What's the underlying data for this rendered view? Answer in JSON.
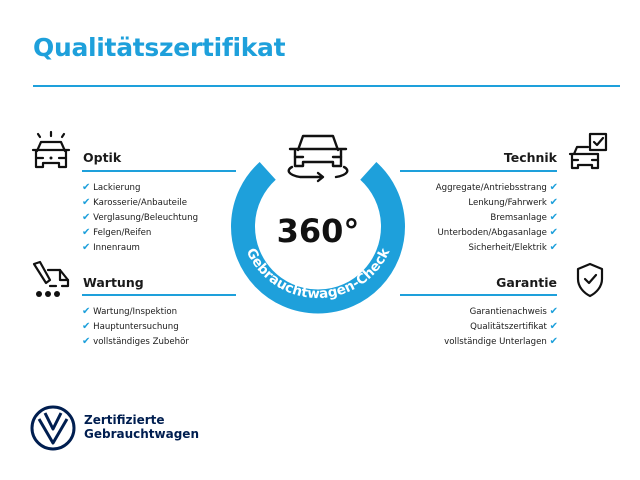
{
  "title": "Qualitätszertifikat",
  "accent_color": "#1ea0db",
  "badge": {
    "main": "360°",
    "ring_text": "Gebrauchtwagen-Check",
    "icon": "car-rotate-icon"
  },
  "sections": {
    "optik": {
      "heading": "Optik",
      "icon": "car-headlights-icon",
      "items": [
        "Lackierung",
        "Karosserie/Anbauteile",
        "Verglasung/Beleuchtung",
        "Felgen/Reifen",
        "Innenraum"
      ]
    },
    "wartung": {
      "heading": "Wartung",
      "icon": "service-car-icon",
      "items": [
        "Wartung/Inspektion",
        "Hauptuntersuchung",
        "vollständiges Zubehör"
      ]
    },
    "technik": {
      "heading": "Technik",
      "icon": "car-checklist-icon",
      "items": [
        "Aggregate/Antriebsstrang",
        "Lenkung/Fahrwerk",
        "Bremsanlage",
        "Unterboden/Abgasanlage",
        "Sicherheit/Elektrik"
      ]
    },
    "garantie": {
      "heading": "Garantie",
      "icon": "shield-check-icon",
      "items": [
        "Garantienachweis",
        "Qualitätszertifikat",
        "vollständige Unterlagen"
      ]
    }
  },
  "check_glyph": "✔",
  "brand": {
    "line1": "Zertifizierte",
    "line2": "Gebrauchtwagen",
    "logo": "vw-logo",
    "color": "#001e50"
  }
}
